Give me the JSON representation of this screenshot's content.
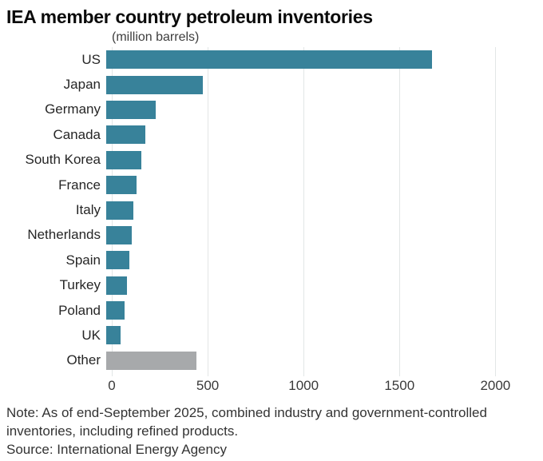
{
  "title": "IEA member country petroleum inventories",
  "subtitle": "(million barrels)",
  "note": "Note: As of end-September 2025, combined industry and government-controlled inventories, including refined products.",
  "source": "Source: International Energy Agency",
  "colors": {
    "bar_teal": "#38829a",
    "bar_gray": "#a7a9ab",
    "gridline": "#e2e6e6",
    "title_text": "#0b0b0b",
    "body_text": "#333333"
  },
  "chart_data": {
    "type": "bar",
    "orientation": "horizontal",
    "title": "IEA member country petroleum inventories",
    "subtitle": "(million barrels)",
    "xlabel": "",
    "ylabel": "",
    "xlim": [
      0,
      2165
    ],
    "xticks": [
      0,
      500,
      1000,
      1500,
      2000
    ],
    "xtick_labels": [
      "0",
      "500",
      "1000",
      "1500",
      "2000"
    ],
    "grid": "vertical",
    "legend": "none",
    "categories": [
      "US",
      "Japan",
      "Germany",
      "Canada",
      "South Korea",
      "France",
      "Italy",
      "Netherlands",
      "Spain",
      "Turkey",
      "Poland",
      "UK",
      "Other"
    ],
    "values": [
      1700,
      505,
      260,
      205,
      185,
      160,
      140,
      135,
      120,
      110,
      95,
      75,
      470
    ],
    "bar_colors": [
      "#38829a",
      "#38829a",
      "#38829a",
      "#38829a",
      "#38829a",
      "#38829a",
      "#38829a",
      "#38829a",
      "#38829a",
      "#38829a",
      "#38829a",
      "#38829a",
      "#a7a9ab"
    ]
  }
}
